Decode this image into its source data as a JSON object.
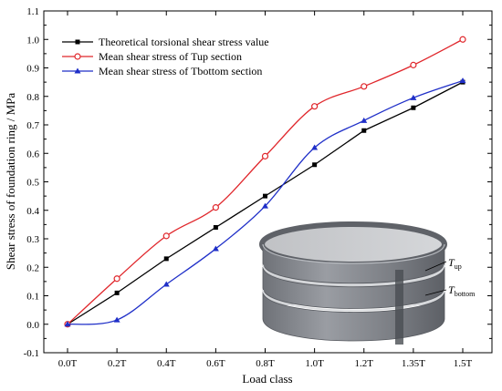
{
  "chart_data": {
    "type": "line",
    "title": "",
    "xlabel": "Load class",
    "ylabel": "Shear stress of foundation ring / MPa",
    "categories": [
      "0.0T",
      "0.2T",
      "0.4T",
      "0.6T",
      "0.8T",
      "1.0T",
      "1.2T",
      "1.35T",
      "1.5T"
    ],
    "ylim": [
      -0.1,
      1.1
    ],
    "yticks": [
      "-0.1",
      "0.0",
      "0.1",
      "0.2",
      "0.3",
      "0.4",
      "0.5",
      "0.6",
      "0.7",
      "0.8",
      "0.9",
      "1.0",
      "1.1"
    ],
    "grid": false,
    "legend_position": "top-left",
    "series": [
      {
        "name": "Theoretical torsional shear stress value",
        "color": "#000000",
        "marker": "square",
        "values": [
          0.0,
          0.11,
          0.23,
          0.34,
          0.45,
          0.56,
          0.68,
          0.76,
          0.85
        ]
      },
      {
        "name": "Mean shear stress of Tup section",
        "color": "#e0262b",
        "marker": "circle",
        "values": [
          0.0,
          0.16,
          0.31,
          0.41,
          0.59,
          0.765,
          0.835,
          0.91,
          1.0
        ]
      },
      {
        "name": "Mean shear stress of Tbottom section",
        "color": "#1f2fc8",
        "marker": "triangle",
        "values": [
          0.0,
          0.015,
          0.14,
          0.265,
          0.415,
          0.62,
          0.715,
          0.795,
          0.855
        ]
      }
    ],
    "inset": {
      "label_up_main": "T",
      "label_up_sub": "up",
      "label_bottom_main": "T",
      "label_bottom_sub": "bottom"
    }
  }
}
